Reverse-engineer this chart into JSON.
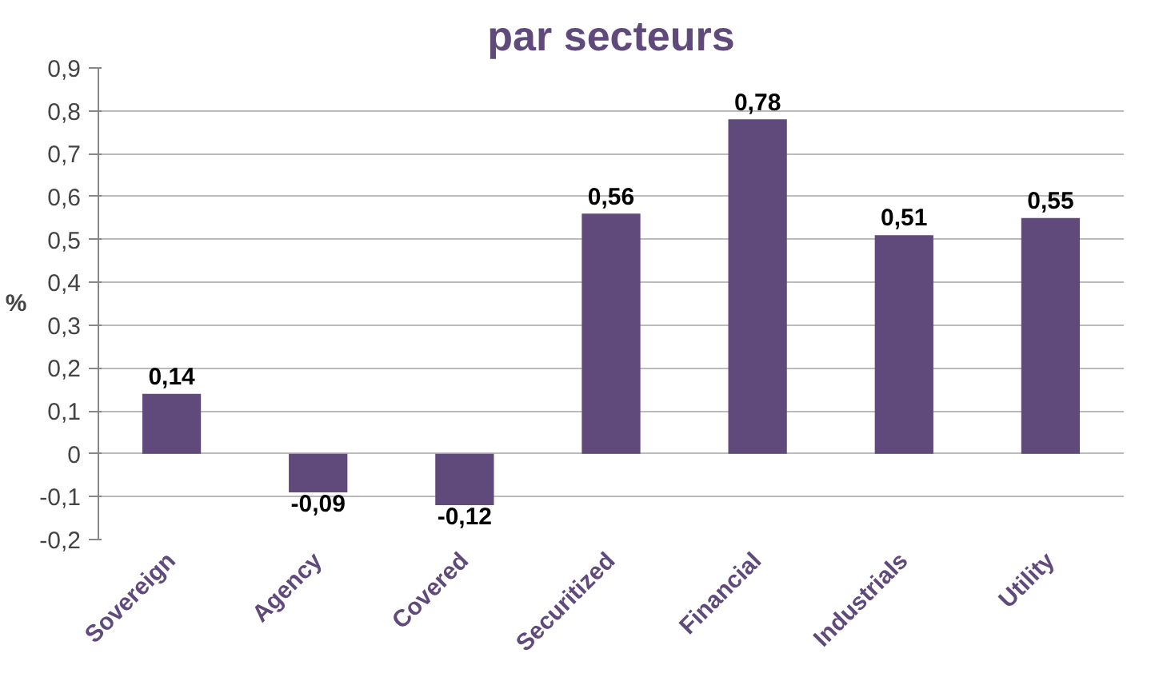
{
  "chart_data": {
    "type": "bar",
    "title": "par secteurs",
    "ylabel": "%",
    "categories": [
      "Sovereign",
      "Agency",
      "Covered",
      "Securitized",
      "Financial",
      "Industrials",
      "Utility"
    ],
    "values": [
      0.14,
      -0.09,
      -0.12,
      0.56,
      0.78,
      0.51,
      0.55
    ],
    "value_labels": [
      "0,14",
      "-0,09",
      "-0,12",
      "0,56",
      "0,78",
      "0,51",
      "0,55"
    ],
    "color": "#604a7b",
    "ylim": [
      -0.2,
      0.9
    ],
    "yticks": [
      {
        "value": -0.2,
        "label": "-0,2"
      },
      {
        "value": -0.1,
        "label": "-0,1"
      },
      0,
      {
        "value": 0.1,
        "label": "0,1"
      },
      {
        "value": 0.2,
        "label": "0,2"
      },
      {
        "value": 0.3,
        "label": "0,3"
      },
      {
        "value": 0.4,
        "label": "0,4"
      },
      {
        "value": 0.5,
        "label": "0,5"
      },
      {
        "value": 0.6,
        "label": "0,6"
      },
      {
        "value": 0.7,
        "label": "0,7"
      },
      {
        "value": 0.8,
        "label": "0,8"
      },
      {
        "value": 0.9,
        "label": "0,9"
      }
    ],
    "grid": "y"
  }
}
